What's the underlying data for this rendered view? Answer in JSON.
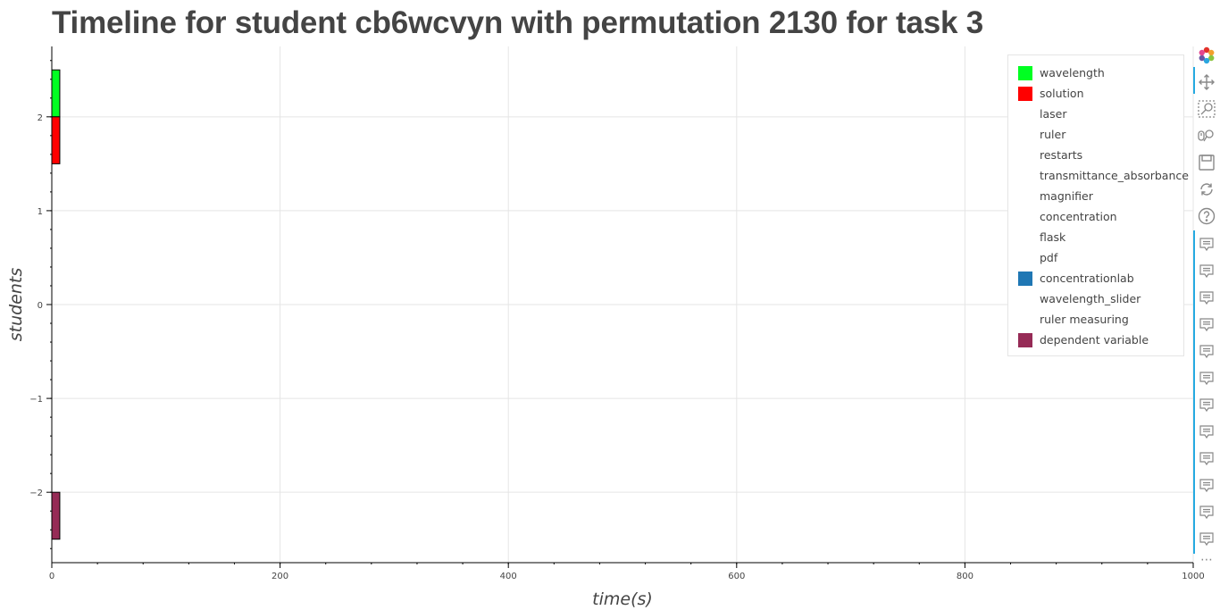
{
  "title": "Timeline for student cb6wcvyn with permutation 2130 for task 3",
  "chart_data": {
    "type": "bar",
    "orientation": "horizontal",
    "xlabel": "time(s)",
    "ylabel": "students",
    "xlim": [
      0,
      1000
    ],
    "ylim": [
      -2.75,
      2.75
    ],
    "x_ticks": [
      0,
      200,
      400,
      600,
      800,
      1000
    ],
    "y_ticks": [
      -2,
      -1,
      0,
      1,
      2
    ],
    "x_tick_labels": [
      "0",
      "200",
      "400",
      "600",
      "800",
      "1000"
    ],
    "y_tick_labels": [
      "−2",
      "−1",
      "0",
      "1",
      "2"
    ],
    "grid": true,
    "legend_position": "top-right",
    "series": [
      {
        "name": "wavelength",
        "color": "#00ff22",
        "bars": [
          {
            "start": 0,
            "end": 7,
            "y0": 2.0,
            "y1": 2.5
          }
        ]
      },
      {
        "name": "solution",
        "color": "#ff0000",
        "bars": [
          {
            "start": 0,
            "end": 7,
            "y0": 1.5,
            "y1": 2.0
          }
        ]
      },
      {
        "name": "laser",
        "color": "#ffffff",
        "bars": []
      },
      {
        "name": "ruler",
        "color": "#ffffff",
        "bars": []
      },
      {
        "name": "restarts",
        "color": "#ffffff",
        "bars": []
      },
      {
        "name": "transmittance_absorbance",
        "color": "#ffffff",
        "bars": []
      },
      {
        "name": "magnifier",
        "color": "#ffffff",
        "bars": []
      },
      {
        "name": "concentration",
        "color": "#ffffff",
        "bars": []
      },
      {
        "name": "flask",
        "color": "#ffffff",
        "bars": []
      },
      {
        "name": "pdf",
        "color": "#ffffff",
        "bars": []
      },
      {
        "name": "concentrationlab",
        "color": "#1f77b4",
        "bars": []
      },
      {
        "name": "wavelength_slider",
        "color": "#ffffff",
        "bars": []
      },
      {
        "name": "ruler measuring",
        "color": "#ffffff",
        "bars": []
      },
      {
        "name": "dependent variable",
        "color": "#962b56",
        "bars": [
          {
            "start": 0,
            "end": 7,
            "y0": -2.5,
            "y1": -2.0
          }
        ]
      }
    ]
  },
  "toolbar": {
    "tools": [
      "bokeh-logo-icon",
      "pan-icon",
      "box-zoom-icon",
      "wheel-zoom-icon",
      "save-icon",
      "reset-icon",
      "help-icon"
    ],
    "hover_tool_count": 12,
    "overflow_label": "⋯"
  }
}
